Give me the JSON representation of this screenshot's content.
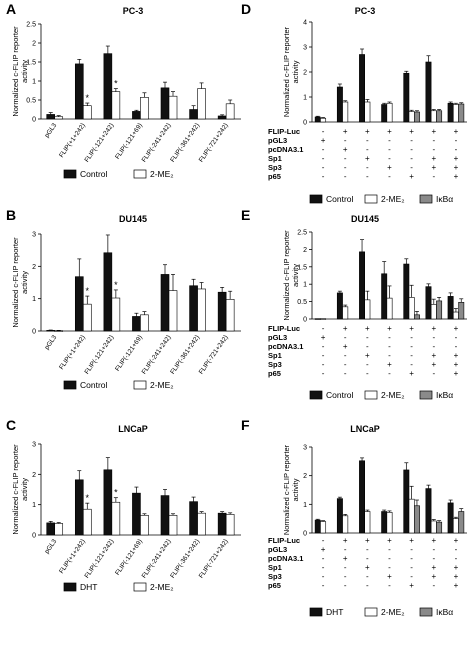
{
  "styles": {
    "black": "#111111",
    "white": "#ffffff",
    "gray": "#8a8a8a",
    "stroke": "#000000"
  },
  "ylabel": "Normalized c-FLIP reporter activity",
  "chart_data": [
    {
      "panel": "A",
      "title": "PC-3",
      "type": "bar",
      "ylim": [
        0,
        2.5
      ],
      "yticks": [
        0,
        0.5,
        1,
        1.5,
        2,
        2.5
      ],
      "categories": [
        "pGL3",
        "FLIP(+1+242)",
        "FLIP(-121+242)",
        "FLIP(-121+69)",
        "FLIP(-241+242)",
        "FLIP(-361+242)",
        "FLIP(-721+242)"
      ],
      "series": [
        {
          "name": "Control",
          "color": "#111111",
          "values": [
            0.12,
            1.45,
            1.72,
            0.2,
            0.82,
            0.25,
            0.08
          ],
          "errors": [
            0.05,
            0.12,
            0.2,
            0.03,
            0.15,
            0.1,
            0.03
          ]
        },
        {
          "name": "2-ME₂",
          "color": "#ffffff",
          "values": [
            0.06,
            0.35,
            0.72,
            0.57,
            0.6,
            0.8,
            0.4
          ],
          "errors": [
            0.03,
            0.07,
            0.08,
            0.12,
            0.12,
            0.15,
            0.1
          ]
        }
      ],
      "significance": [
        "",
        "*",
        "*",
        "",
        "",
        "",
        ""
      ]
    },
    {
      "panel": "B",
      "title": "DU145",
      "type": "bar",
      "ylim": [
        0,
        3
      ],
      "yticks": [
        0,
        1,
        2,
        3
      ],
      "categories": [
        "pGL3",
        "FLIP(+1+242)",
        "FLIP(-121+242)",
        "FLIP(-121+69)",
        "FLIP(-241+242)",
        "FLIP(-361+242)",
        "FLIP(-721+242)"
      ],
      "series": [
        {
          "name": "Control",
          "color": "#111111",
          "values": [
            0.02,
            1.68,
            2.42,
            0.45,
            1.75,
            1.4,
            1.2
          ],
          "errors": [
            0.01,
            0.55,
            0.55,
            0.1,
            0.3,
            0.2,
            0.15
          ]
        },
        {
          "name": "2-ME₂",
          "color": "#ffffff",
          "values": [
            0.01,
            0.83,
            1.02,
            0.5,
            1.25,
            1.3,
            0.98
          ],
          "errors": [
            0.01,
            0.25,
            0.25,
            0.1,
            0.5,
            0.2,
            0.25
          ]
        }
      ],
      "significance": [
        "",
        "*",
        "*",
        "",
        "",
        "",
        ""
      ]
    },
    {
      "panel": "C",
      "title": "LNCaP",
      "type": "bar",
      "ylim": [
        0,
        3
      ],
      "yticks": [
        0,
        1,
        2,
        3
      ],
      "categories": [
        "pGL3",
        "FLIP(+1+242)",
        "FLIP(-121+242)",
        "FLIP(-121+69)",
        "FLIP(-241+242)",
        "FLIP(-361+242)",
        "FLIP(-721+242)"
      ],
      "series": [
        {
          "name": "DHT",
          "color": "#111111",
          "values": [
            0.4,
            1.82,
            2.15,
            1.38,
            1.3,
            1.1,
            0.72
          ],
          "errors": [
            0.05,
            0.3,
            0.4,
            0.2,
            0.2,
            0.15,
            0.05
          ]
        },
        {
          "name": "2-ME₂",
          "color": "#ffffff",
          "values": [
            0.38,
            0.85,
            1.08,
            0.65,
            0.65,
            0.72,
            0.68
          ],
          "errors": [
            0.03,
            0.2,
            0.15,
            0.05,
            0.05,
            0.05,
            0.05
          ]
        }
      ],
      "significance": [
        "",
        "*",
        "*",
        "",
        "",
        "",
        ""
      ]
    },
    {
      "panel": "D",
      "title": "PC-3",
      "type": "bar",
      "ylim": [
        0,
        4
      ],
      "yticks": [
        0,
        1,
        2,
        3,
        4
      ],
      "series_names": [
        "Control",
        "2-ME₂",
        "IκBα"
      ],
      "row_labels": [
        "FLIP-Luc",
        "pGL3",
        "pcDNA3.1",
        "Sp1",
        "Sp3",
        "p65"
      ],
      "groups": [
        {
          "values": [
            0.2,
            0.15,
            null
          ],
          "errors": [
            0.03,
            0.03,
            0
          ],
          "conditions": [
            "-",
            "+",
            "-",
            "-",
            "-",
            "-"
          ]
        },
        {
          "values": [
            1.4,
            0.8,
            null
          ],
          "errors": [
            0.12,
            0.05,
            0
          ],
          "conditions": [
            "+",
            "-",
            "+",
            "-",
            "-",
            "-"
          ]
        },
        {
          "values": [
            2.7,
            0.8,
            null
          ],
          "errors": [
            0.22,
            0.1,
            0
          ],
          "conditions": [
            "+",
            "-",
            "-",
            "+",
            "-",
            "-"
          ]
        },
        {
          "values": [
            0.7,
            0.75,
            null
          ],
          "errors": [
            0.05,
            0.05,
            0
          ],
          "conditions": [
            "+",
            "-",
            "-",
            "-",
            "+",
            "-"
          ]
        },
        {
          "values": [
            1.95,
            0.42,
            0.4
          ],
          "errors": [
            0.08,
            0.05,
            0.05
          ],
          "conditions": [
            "+",
            "-",
            "-",
            "-",
            "-",
            "+"
          ]
        },
        {
          "values": [
            2.4,
            0.45,
            0.45
          ],
          "errors": [
            0.25,
            0.05,
            0.05
          ],
          "conditions": [
            "+",
            "-",
            "-",
            "+",
            "+",
            "-"
          ]
        },
        {
          "values": [
            0.75,
            0.7,
            0.72
          ],
          "errors": [
            0.05,
            0.05,
            0.05
          ],
          "conditions": [
            "+",
            "-",
            "-",
            "+",
            "+",
            "+"
          ]
        }
      ]
    },
    {
      "panel": "E",
      "title": "DU145",
      "type": "bar",
      "ylim": [
        0,
        2.5
      ],
      "yticks": [
        0,
        0.5,
        1,
        1.5,
        2,
        2.5
      ],
      "series_names": [
        "Control",
        "2-ME₂",
        "IκBα"
      ],
      "row_labels": [
        "FLIP-Luc",
        "pGL3",
        "pcDNA3.1",
        "Sp1",
        "Sp3",
        "p65"
      ],
      "groups": [
        {
          "values": [
            0.01,
            0.01,
            null
          ],
          "errors": [
            0,
            0,
            0
          ],
          "conditions": [
            "-",
            "+",
            "-",
            "-",
            "-",
            "-"
          ]
        },
        {
          "values": [
            0.75,
            0.35,
            null
          ],
          "errors": [
            0.05,
            0.05,
            0
          ],
          "conditions": [
            "+",
            "-",
            "+",
            "-",
            "-",
            "-"
          ]
        },
        {
          "values": [
            1.93,
            0.55,
            null
          ],
          "errors": [
            0.35,
            0.25,
            0
          ],
          "conditions": [
            "+",
            "-",
            "-",
            "+",
            "-",
            "-"
          ]
        },
        {
          "values": [
            1.3,
            0.6,
            null
          ],
          "errors": [
            0.35,
            0.35,
            0
          ],
          "conditions": [
            "+",
            "-",
            "-",
            "-",
            "+",
            "-"
          ]
        },
        {
          "values": [
            1.58,
            0.62,
            0.12
          ],
          "errors": [
            0.15,
            0.35,
            0.1
          ],
          "conditions": [
            "+",
            "-",
            "-",
            "-",
            "-",
            "+"
          ]
        },
        {
          "values": [
            0.93,
            0.42,
            0.52
          ],
          "errors": [
            0.08,
            0.15,
            0.1
          ],
          "conditions": [
            "+",
            "-",
            "-",
            "+",
            "+",
            "-"
          ]
        },
        {
          "values": [
            0.65,
            0.2,
            0.48
          ],
          "errors": [
            0.1,
            0.1,
            0.1
          ],
          "conditions": [
            "+",
            "-",
            "-",
            "+",
            "+",
            "+"
          ]
        }
      ]
    },
    {
      "panel": "F",
      "title": "LNCaP",
      "type": "bar",
      "ylim": [
        0,
        3
      ],
      "yticks": [
        0,
        1,
        2,
        3
      ],
      "series_names": [
        "DHT",
        "2-ME₂",
        "IκBα"
      ],
      "row_labels": [
        "FLIP-Luc",
        "pGL3",
        "pcDNA3.1",
        "Sp1",
        "Sp3",
        "p65"
      ],
      "groups": [
        {
          "values": [
            0.45,
            0.4,
            null
          ],
          "errors": [
            0.03,
            0.03,
            0
          ],
          "conditions": [
            "-",
            "+",
            "-",
            "-",
            "-",
            "-"
          ]
        },
        {
          "values": [
            1.2,
            0.6,
            null
          ],
          "errors": [
            0.05,
            0.05,
            0
          ],
          "conditions": [
            "+",
            "-",
            "+",
            "-",
            "-",
            "-"
          ]
        },
        {
          "values": [
            2.52,
            0.75,
            null
          ],
          "errors": [
            0.1,
            0.05,
            0
          ],
          "conditions": [
            "+",
            "-",
            "-",
            "+",
            "-",
            "-"
          ]
        },
        {
          "values": [
            0.75,
            0.72,
            null
          ],
          "errors": [
            0.05,
            0.05,
            0
          ],
          "conditions": [
            "+",
            "-",
            "-",
            "-",
            "+",
            "-"
          ]
        },
        {
          "values": [
            2.2,
            1.18,
            0.95
          ],
          "errors": [
            0.25,
            0.45,
            0.2
          ],
          "conditions": [
            "+",
            "-",
            "-",
            "-",
            "-",
            "+"
          ]
        },
        {
          "values": [
            1.55,
            0.42,
            0.38
          ],
          "errors": [
            0.12,
            0.05,
            0.05
          ],
          "conditions": [
            "+",
            "-",
            "-",
            "+",
            "+",
            "-"
          ]
        },
        {
          "values": [
            1.05,
            0.5,
            0.75
          ],
          "errors": [
            0.1,
            0.05,
            0.1
          ],
          "conditions": [
            "+",
            "-",
            "-",
            "+",
            "+",
            "+"
          ]
        }
      ]
    }
  ]
}
